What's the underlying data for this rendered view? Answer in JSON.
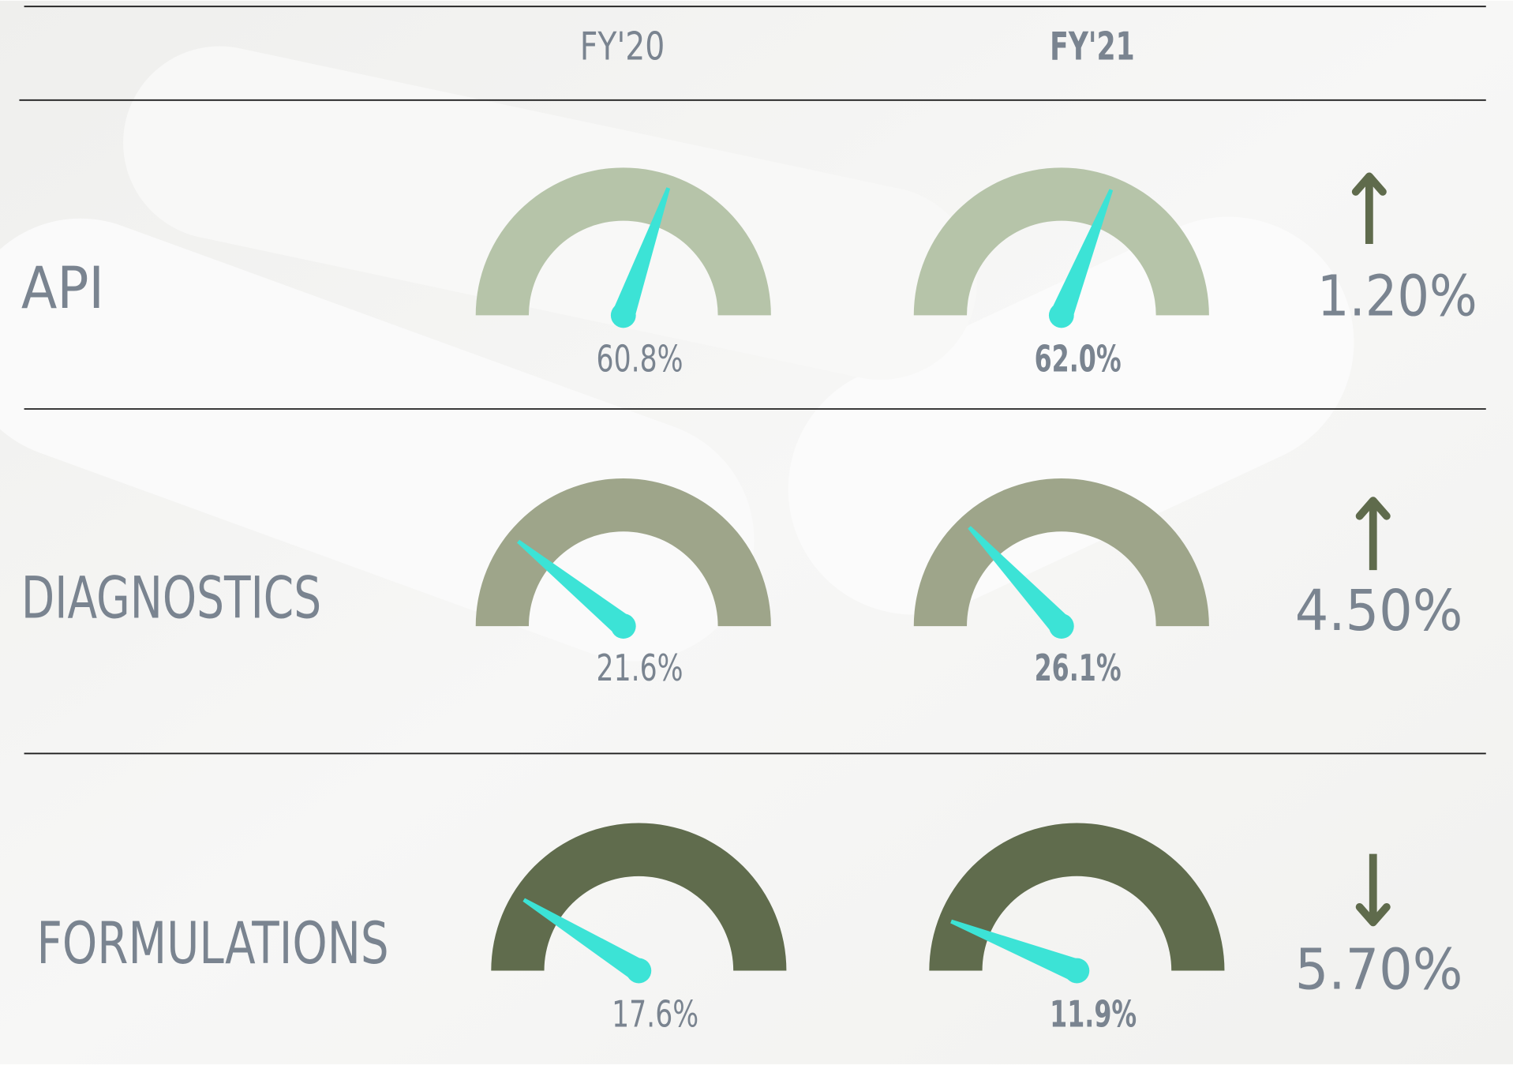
{
  "columns": [
    "FY'20",
    "FY'21"
  ],
  "gauge_range": [
    0,
    100
  ],
  "needle_color": "#3ce3d6",
  "rows": [
    {
      "label": "API",
      "values": [
        60.8,
        62.0
      ],
      "value_labels": [
        "60.8%",
        "62.0%"
      ],
      "change": "1.20%",
      "direction": "up",
      "color": "#b6c4a9"
    },
    {
      "label": "DIAGNOSTICS",
      "values": [
        21.6,
        26.1
      ],
      "value_labels": [
        "21.6%",
        "26.1%"
      ],
      "change": "4.50%",
      "direction": "up",
      "color": "#9ea58a"
    },
    {
      "label": "FORMULATIONS",
      "values": [
        17.6,
        11.9
      ],
      "value_labels": [
        "17.6%",
        "11.9%"
      ],
      "change": "5.70%",
      "direction": "down",
      "color": "#606c4d"
    }
  ]
}
